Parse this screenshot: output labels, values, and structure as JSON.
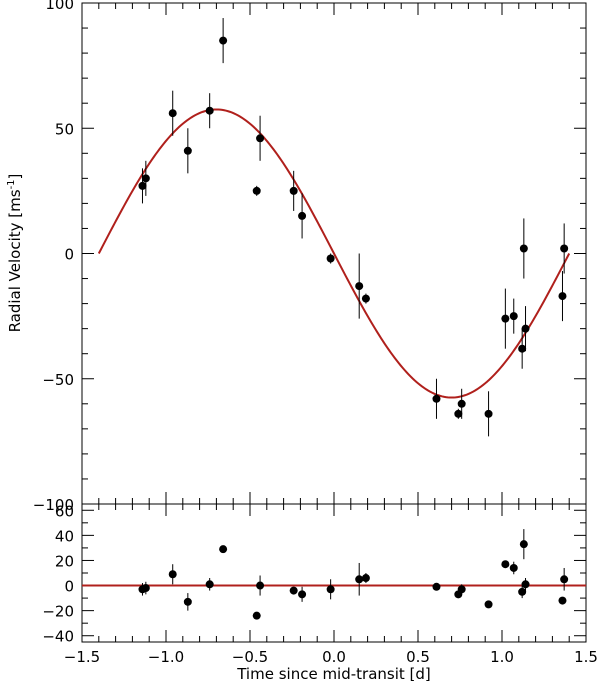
{
  "chart_data": [
    {
      "type": "scatter",
      "panel": "radial-velocity",
      "xlabel": "Time since mid-transit [d]",
      "ylabel_text": "Radial Velocity [ms",
      "ylabel_sup": "-1",
      "ylabel_close": "]",
      "xlim": [
        -1.5,
        1.5
      ],
      "ylim": [
        -100,
        100
      ],
      "xticks": [
        -1.5,
        -1.0,
        -0.5,
        0.0,
        0.5,
        1.0,
        1.5
      ],
      "xtick_labels": [
        "−1.5",
        "−1.0",
        "−0.5",
        "0.0",
        "0.5",
        "1.0",
        "1.5"
      ],
      "yticks": [
        -100,
        -50,
        0,
        50,
        100
      ],
      "ytick_labels": [
        "−100",
        "−50",
        "0",
        "50",
        "100"
      ],
      "grid": false,
      "model_curve": {
        "form": "sine",
        "amplitude": 57.5,
        "period": 2.8,
        "x_range": [
          -1.4,
          1.4
        ],
        "color": "#b0201c"
      },
      "points": [
        {
          "x": -1.14,
          "y": 27,
          "err": 7
        },
        {
          "x": -1.12,
          "y": 30,
          "err": 7
        },
        {
          "x": -0.96,
          "y": 56,
          "err": 9
        },
        {
          "x": -0.87,
          "y": 41,
          "err": 9
        },
        {
          "x": -0.74,
          "y": 57,
          "err": 7
        },
        {
          "x": -0.66,
          "y": 85,
          "err": 9
        },
        {
          "x": -0.46,
          "y": 25,
          "err": 2
        },
        {
          "x": -0.44,
          "y": 46,
          "err": 9
        },
        {
          "x": -0.24,
          "y": 25,
          "err": 8
        },
        {
          "x": -0.19,
          "y": 15,
          "err": 9
        },
        {
          "x": -0.02,
          "y": -2,
          "err": 2
        },
        {
          "x": 0.15,
          "y": -13,
          "err": 13
        },
        {
          "x": 0.19,
          "y": -18,
          "err": 2
        },
        {
          "x": 0.61,
          "y": -58,
          "err": 8
        },
        {
          "x": 0.74,
          "y": -64,
          "err": 2
        },
        {
          "x": 0.76,
          "y": -60,
          "err": 6
        },
        {
          "x": 0.92,
          "y": -64,
          "err": 9
        },
        {
          "x": 1.02,
          "y": -26,
          "err": 12
        },
        {
          "x": 1.07,
          "y": -25,
          "err": 7
        },
        {
          "x": 1.12,
          "y": -38,
          "err": 8
        },
        {
          "x": 1.13,
          "y": 2,
          "err": 12
        },
        {
          "x": 1.14,
          "y": -30,
          "err": 9
        },
        {
          "x": 1.36,
          "y": -17,
          "err": 10
        },
        {
          "x": 1.37,
          "y": 2,
          "err": 10
        }
      ]
    },
    {
      "type": "scatter",
      "panel": "residuals",
      "xlim": [
        -1.5,
        1.5
      ],
      "ylim": [
        -45,
        65
      ],
      "yticks": [
        -40,
        -20,
        0,
        20,
        40,
        60
      ],
      "ytick_labels": [
        "−40",
        "−20",
        "0",
        "20",
        "40",
        "60"
      ],
      "zero_line_color": "#b0201c",
      "points": [
        {
          "x": -1.14,
          "y": -3,
          "err": 5
        },
        {
          "x": -1.12,
          "y": -2,
          "err": 5
        },
        {
          "x": -0.96,
          "y": 9,
          "err": 8
        },
        {
          "x": -0.87,
          "y": -13,
          "err": 7
        },
        {
          "x": -0.74,
          "y": 1,
          "err": 5
        },
        {
          "x": -0.66,
          "y": 29,
          "err": 2
        },
        {
          "x": -0.46,
          "y": -24,
          "err": 1
        },
        {
          "x": -0.44,
          "y": 0,
          "err": 8
        },
        {
          "x": -0.24,
          "y": -4,
          "err": 2
        },
        {
          "x": -0.19,
          "y": -7,
          "err": 6
        },
        {
          "x": -0.02,
          "y": -3,
          "err": 8
        },
        {
          "x": 0.15,
          "y": 5,
          "err": 13
        },
        {
          "x": 0.19,
          "y": 6,
          "err": 4
        },
        {
          "x": 0.61,
          "y": -1,
          "err": 2
        },
        {
          "x": 0.74,
          "y": -7,
          "err": 2
        },
        {
          "x": 0.76,
          "y": -3,
          "err": 4
        },
        {
          "x": 0.92,
          "y": -15,
          "err": 2
        },
        {
          "x": 1.02,
          "y": 17,
          "err": 2
        },
        {
          "x": 1.07,
          "y": 14,
          "err": 5
        },
        {
          "x": 1.12,
          "y": -5,
          "err": 5
        },
        {
          "x": 1.13,
          "y": 33,
          "err": 12
        },
        {
          "x": 1.14,
          "y": 1,
          "err": 5
        },
        {
          "x": 1.36,
          "y": -12,
          "err": 2
        },
        {
          "x": 1.37,
          "y": 5,
          "err": 9
        }
      ]
    }
  ]
}
